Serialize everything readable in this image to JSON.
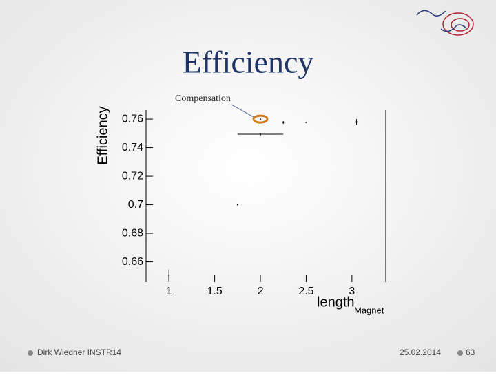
{
  "slide_title": "Efficiency",
  "chart_data": {
    "type": "scatter",
    "y_label": "Efficiency",
    "x_label": "length",
    "x_label_sub": "Magnet",
    "annotation": "Compensation",
    "series": [
      {
        "x": [
          1,
          1.75,
          2,
          2,
          2.25,
          2.5,
          3.05
        ],
        "values": [
          0.6506,
          0.7,
          0.7494,
          0.76,
          0.7576,
          0.7576,
          0.758
        ],
        "yerr": [
          0.004,
          null,
          0.001,
          null,
          0.001,
          null,
          0.002
        ],
        "xerr": [
          null,
          null,
          0.25,
          null,
          null,
          null,
          null
        ],
        "color": "#000000"
      }
    ],
    "highlight_index": 3,
    "highlight_color": "#d07a1a",
    "xlim": [
      0.75,
      3.37
    ],
    "xticks": [
      1,
      1.5,
      2,
      2.5,
      3
    ],
    "ylim": [
      0.6458,
      0.7663
    ],
    "yticks": [
      0.76,
      0.74,
      0.72,
      0.7,
      0.68,
      0.66
    ]
  },
  "footer": {
    "author": "Dirk Wiedner INSTR14",
    "date": "25.02.2014",
    "page": "63"
  }
}
